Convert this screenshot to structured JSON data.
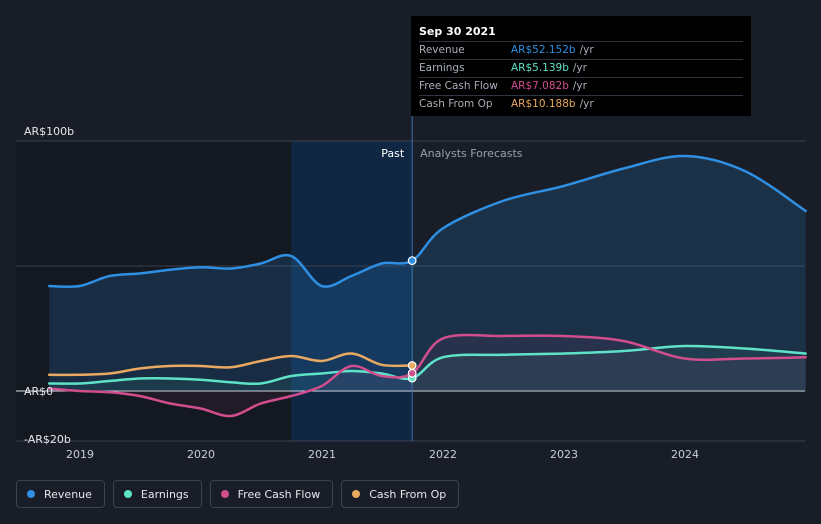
{
  "chart_data": {
    "type": "line",
    "y_tick_labels": [
      "AR$100b",
      "AR$0",
      "-AR$20b"
    ],
    "x_ticks": [
      2019,
      2020,
      2021,
      2022,
      2023,
      2024
    ],
    "ylim": [
      -20,
      100
    ],
    "past_label": "Past",
    "forecast_label": "Analysts Forecasts",
    "grid": true,
    "series": [
      {
        "name": "Revenue",
        "color": "#2f8fe3",
        "fill": true,
        "x": [
          "2018-09-30",
          "2018-12-31",
          "2019-03-31",
          "2019-06-30",
          "2019-09-30",
          "2019-12-31",
          "2020-03-31",
          "2020-06-30",
          "2020-09-30",
          "2020-12-31",
          "2021-03-31",
          "2021-06-30",
          "2021-09-30",
          "2021-12-31",
          "2022-06-30",
          "2022-12-31",
          "2023-06-30",
          "2023-12-31",
          "2024-06-30",
          "2024-12-31"
        ],
        "y": [
          42,
          42,
          46,
          47,
          48.5,
          49.5,
          49,
          51,
          54,
          42,
          46,
          51,
          52.152,
          65,
          76,
          82,
          89,
          94,
          88,
          72
        ]
      },
      {
        "name": "Earnings",
        "color": "#5ee2c8",
        "fill": false,
        "x": [
          "2018-09-30",
          "2018-12-31",
          "2019-03-31",
          "2019-06-30",
          "2019-09-30",
          "2019-12-31",
          "2020-03-31",
          "2020-06-30",
          "2020-09-30",
          "2020-12-31",
          "2021-03-31",
          "2021-06-30",
          "2021-09-30",
          "2021-12-31",
          "2022-06-30",
          "2022-12-31",
          "2023-06-30",
          "2023-12-31",
          "2024-06-30",
          "2024-12-31"
        ],
        "y": [
          3,
          3,
          4,
          5,
          5,
          4.5,
          3.5,
          3,
          6,
          7,
          8,
          7,
          5.139,
          13.5,
          14.5,
          15,
          16,
          18,
          17,
          15
        ]
      },
      {
        "name": "Free Cash Flow",
        "color": "#d14d8c",
        "fill": false,
        "x": [
          "2018-09-30",
          "2018-12-31",
          "2019-03-31",
          "2019-06-30",
          "2019-09-30",
          "2019-12-31",
          "2020-03-31",
          "2020-06-30",
          "2020-09-30",
          "2020-12-31",
          "2021-03-31",
          "2021-06-30",
          "2021-09-30",
          "2021-12-31",
          "2022-06-30",
          "2022-12-31",
          "2023-06-30",
          "2023-12-31",
          "2024-06-30",
          "2024-12-31"
        ],
        "y": [
          1,
          0,
          -0.5,
          -2,
          -5,
          -7,
          -10,
          -5,
          -2,
          2,
          10,
          6,
          7.082,
          21,
          22,
          22,
          20,
          13,
          13,
          13.5
        ]
      },
      {
        "name": "Cash From Op",
        "color": "#e9a960",
        "fill": false,
        "x": [
          "2018-09-30",
          "2018-12-31",
          "2019-03-31",
          "2019-06-30",
          "2019-09-30",
          "2019-12-31",
          "2020-03-31",
          "2020-06-30",
          "2020-09-30",
          "2020-12-31",
          "2021-03-31",
          "2021-06-30",
          "2021-09-30"
        ],
        "y": [
          6.5,
          6.5,
          7,
          9,
          10,
          10,
          9.5,
          12,
          14,
          12,
          15,
          10.5,
          10.188
        ]
      }
    ]
  },
  "tooltip": {
    "date": "Sep 30 2021",
    "rows": [
      {
        "label": "Revenue",
        "value": "AR$52.152b",
        "unit": "/yr",
        "color": "#2f8fe3"
      },
      {
        "label": "Earnings",
        "value": "AR$5.139b",
        "unit": "/yr",
        "color": "#5ee2c8"
      },
      {
        "label": "Free Cash Flow",
        "value": "AR$7.082b",
        "unit": "/yr",
        "color": "#d14d8c"
      },
      {
        "label": "Cash From Op",
        "value": "AR$10.188b",
        "unit": "/yr",
        "color": "#e9a960"
      }
    ]
  },
  "legend": [
    {
      "label": "Revenue",
      "color": "#2f8fe3"
    },
    {
      "label": "Earnings",
      "color": "#5ee2c8"
    },
    {
      "label": "Free Cash Flow",
      "color": "#d14d8c"
    },
    {
      "label": "Cash From Op",
      "color": "#e9a960"
    }
  ],
  "colors": {
    "background": "#181d27",
    "highlight": "#0f2a4a",
    "grid": "#3a404c"
  }
}
